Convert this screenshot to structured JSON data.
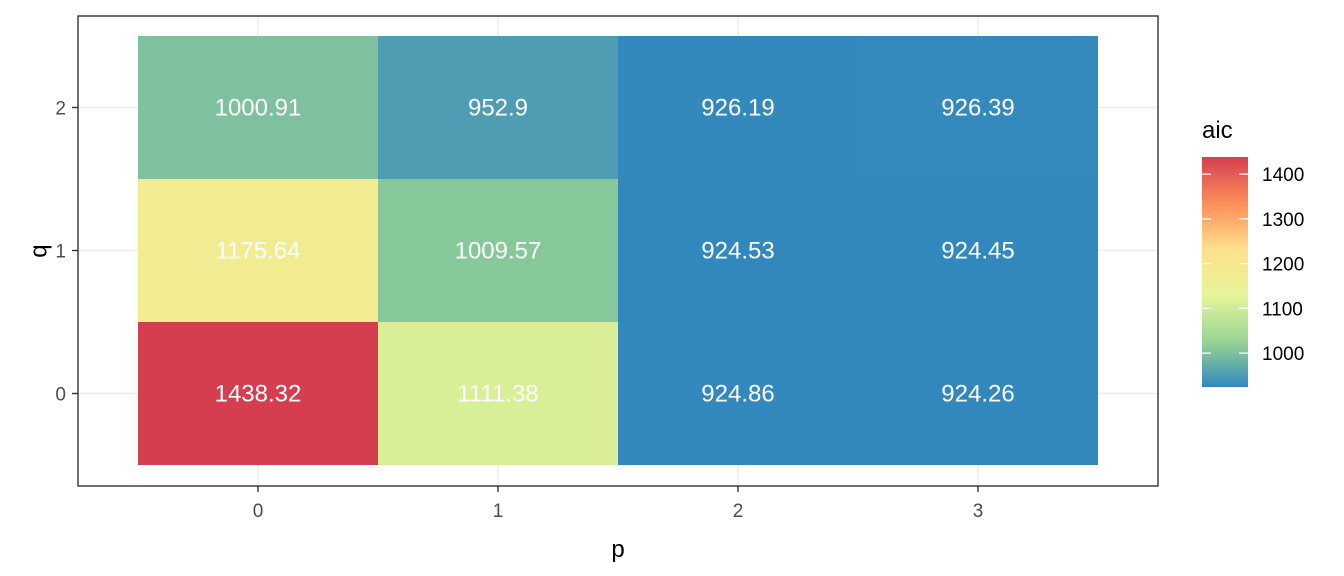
{
  "chart_data": {
    "type": "heatmap",
    "xlabel": "p",
    "ylabel": "q",
    "x_categories": [
      "0",
      "1",
      "2",
      "3"
    ],
    "y_categories": [
      "0",
      "1",
      "2"
    ],
    "cells": [
      {
        "p": 0,
        "q": 0,
        "aic": 1438.32,
        "label": "1438.32"
      },
      {
        "p": 1,
        "q": 0,
        "aic": 1111.38,
        "label": "1111.38"
      },
      {
        "p": 2,
        "q": 0,
        "aic": 924.86,
        "label": "924.86"
      },
      {
        "p": 3,
        "q": 0,
        "aic": 924.26,
        "label": "924.26"
      },
      {
        "p": 0,
        "q": 1,
        "aic": 1175.64,
        "label": "1175.64"
      },
      {
        "p": 1,
        "q": 1,
        "aic": 1009.57,
        "label": "1009.57"
      },
      {
        "p": 2,
        "q": 1,
        "aic": 924.53,
        "label": "924.53"
      },
      {
        "p": 3,
        "q": 1,
        "aic": 924.45,
        "label": "924.45"
      },
      {
        "p": 0,
        "q": 2,
        "aic": 1000.91,
        "label": "1000.91"
      },
      {
        "p": 1,
        "q": 2,
        "aic": 952.9,
        "label": "952.9"
      },
      {
        "p": 2,
        "q": 2,
        "aic": 926.19,
        "label": "926.19"
      },
      {
        "p": 3,
        "q": 2,
        "aic": 926.39,
        "label": "926.39"
      }
    ],
    "legend": {
      "title": "aic",
      "range": [
        924.26,
        1438.32
      ],
      "breaks": [
        1000,
        1100,
        1200,
        1300,
        1400
      ],
      "break_labels": [
        "1000",
        "1100",
        "1200",
        "1300",
        "1400"
      ],
      "palette": [
        "#3288bd",
        "#99d594",
        "#e6f598",
        "#fee08b",
        "#fc8d59",
        "#d53e4f"
      ]
    },
    "grid": true,
    "legend_position": "right"
  }
}
